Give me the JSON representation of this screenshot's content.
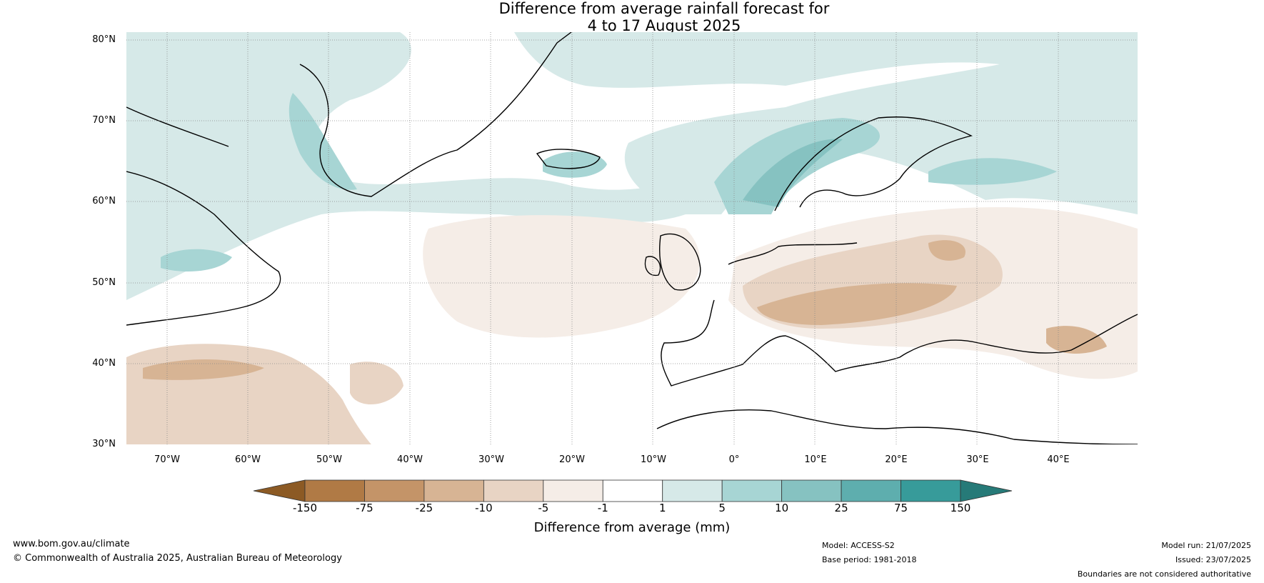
{
  "title_line1": "Difference from average rainfall forecast for",
  "title_line2": "4 to 17 August 2025",
  "lat_labels": [
    "80°N",
    "70°N",
    "60°N",
    "50°N",
    "40°N",
    "30°N"
  ],
  "lon_labels": [
    "70°W",
    "60°W",
    "50°W",
    "40°W",
    "30°W",
    "20°W",
    "10°W",
    "0°",
    "10°E",
    "20°E",
    "30°E",
    "40°E"
  ],
  "colorbar": {
    "title": "Difference from average (mm)",
    "tick_labels": [
      "-150",
      "-75",
      "-25",
      "-10",
      "-5",
      "-1",
      "1",
      "5",
      "10",
      "25",
      "75",
      "150"
    ],
    "colors": [
      "#8c5a24",
      "#b07a45",
      "#c49468",
      "#d7b494",
      "#e8d4c4",
      "#f5ede7",
      "#ffffff",
      "#d6e9e8",
      "#a7d5d4",
      "#86c2c1",
      "#5eaeae",
      "#379b9a",
      "#267a78"
    ]
  },
  "footer": {
    "website": "www.bom.gov.au/climate",
    "copyright": "© Commonwealth of Australia 2025, Australian Bureau of Meteorology",
    "model": "Model: ACCESS-S2",
    "base_period": "Base period: 1981-2018",
    "model_run": "Model run: 21/07/2025",
    "issued": "Issued: 23/07/2025",
    "disclaimer": "Boundaries are not considered authoritative"
  }
}
